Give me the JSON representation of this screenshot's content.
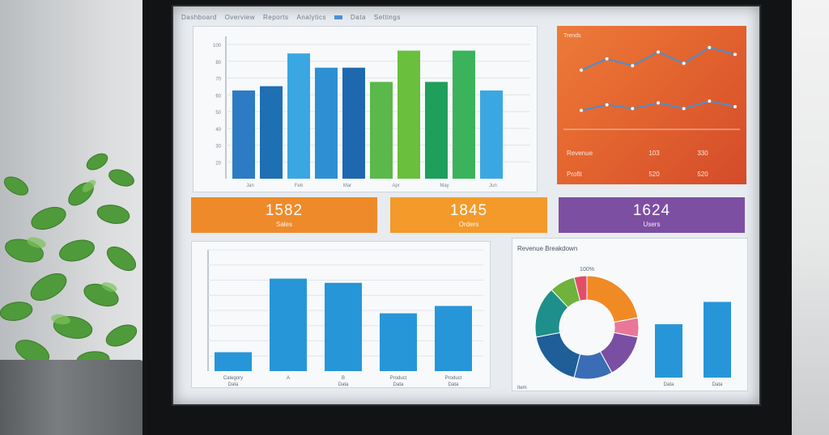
{
  "header": {
    "items": [
      "Dashboard",
      "Overview",
      "Reports",
      "Analytics",
      "Data",
      "Settings"
    ]
  },
  "top_bar_chart": {
    "y_ticks": [
      "100",
      "80",
      "70",
      "60",
      "50",
      "40",
      "30",
      "20"
    ],
    "values": [
      0.62,
      0.65,
      0.88,
      0.78,
      0.78,
      0.68,
      0.9,
      0.68,
      0.9,
      0.62
    ],
    "colors": [
      "#2d7bc4",
      "#1f6fb3",
      "#3aa7e3",
      "#2e8fd3",
      "#1e68b0",
      "#5bb84a",
      "#6abf3d",
      "#1f9e5c",
      "#3bb35a",
      "#3aa7e3"
    ],
    "x_labels": [
      "Jan",
      "Feb",
      "Mar",
      "Apr",
      "May",
      "Jun"
    ]
  },
  "line_panel": {
    "title": "Trends",
    "series_a": [
      0.45,
      0.7,
      0.55,
      0.85,
      0.6,
      0.95,
      0.8
    ],
    "series_b": [
      0.25,
      0.4,
      0.3,
      0.45,
      0.3,
      0.5,
      0.35
    ],
    "stats": [
      {
        "label": "Revenue",
        "v1": "103",
        "v2": "330"
      },
      {
        "label": "Profit",
        "v1": "520",
        "v2": "520"
      }
    ]
  },
  "stats": [
    {
      "value": "1582",
      "caption": "Sales"
    },
    {
      "value": "1845",
      "caption": "Orders"
    },
    {
      "value": "1624",
      "caption": "Users"
    }
  ],
  "bottom_bar_chart": {
    "values": [
      0.18,
      0.88,
      0.84,
      0.55,
      0.62
    ],
    "x_labels": [
      "Category",
      "A",
      "B",
      "Product",
      "Product"
    ],
    "x_sub": [
      "Data",
      "",
      "Data",
      "Data",
      "Data"
    ]
  },
  "donut_panel": {
    "title": "Revenue Breakdown",
    "center_label": "100%",
    "segments": [
      {
        "value": 22,
        "color": "#f08a24"
      },
      {
        "value": 6,
        "color": "#e9779a"
      },
      {
        "value": 14,
        "color": "#7a4fa3"
      },
      {
        "value": 12,
        "color": "#3a6db5"
      },
      {
        "value": 18,
        "color": "#1f5e99"
      },
      {
        "value": 16,
        "color": "#1e8f8a"
      },
      {
        "value": 8,
        "color": "#6fb23c"
      },
      {
        "value": 4,
        "color": "#e24e6a"
      }
    ],
    "bars": [
      0.55,
      0.78
    ],
    "bar_labels": [
      "Data",
      "Data"
    ],
    "footer": "Item"
  }
}
